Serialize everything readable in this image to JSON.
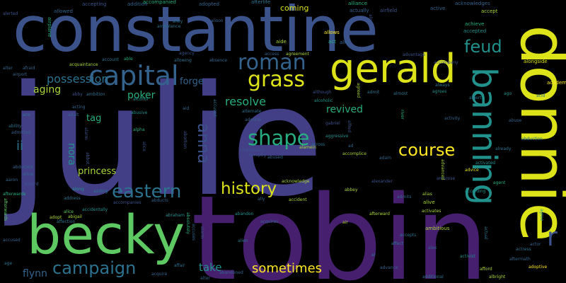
{
  "palette": {
    "background": "#000000",
    "dark_purple": "#46206e",
    "indigo": "#433f86",
    "slate_blue": "#3b528b",
    "blue": "#33638d",
    "teal_blue": "#2c728e",
    "teal": "#21918c",
    "green_teal": "#27ad81",
    "green": "#5ec962",
    "lime": "#a8d63a",
    "yellow": "#dce319",
    "bright_yellow": "#fde725"
  },
  "words": [
    {
      "text": "julie",
      "color": "#433f86"
    },
    {
      "text": "tobin",
      "color": "#46206e"
    },
    {
      "text": "constantine",
      "color": "#3b528b"
    },
    {
      "text": "donnie",
      "color": "#dce319"
    },
    {
      "text": "becky",
      "color": "#5ec962"
    },
    {
      "text": "gerald",
      "color": "#dce319"
    },
    {
      "text": "banning",
      "color": "#21918c"
    },
    {
      "text": "capital",
      "color": "#33638d"
    },
    {
      "text": "roman",
      "color": "#33638d"
    },
    {
      "text": "grass",
      "color": "#dce319"
    },
    {
      "text": "feud",
      "color": "#21918c"
    },
    {
      "text": "shape",
      "color": "#27ad81"
    },
    {
      "text": "eastern",
      "color": "#2c728e"
    },
    {
      "text": "campaign",
      "color": "#2c728e"
    },
    {
      "text": "course",
      "color": "#fde725"
    },
    {
      "text": "history",
      "color": "#dce319"
    },
    {
      "text": "anna",
      "color": "#3b528b"
    },
    {
      "text": "sometimes",
      "color": "#fde725"
    },
    {
      "text": "possession",
      "color": "#2c728e"
    },
    {
      "text": "resolve",
      "color": "#27ad81"
    },
    {
      "text": "revived",
      "color": "#27ad81"
    },
    {
      "text": "poker",
      "color": "#27ad81"
    },
    {
      "text": "forge",
      "color": "#33638d"
    },
    {
      "text": "aging",
      "color": "#a8d63a"
    },
    {
      "text": "tag",
      "color": "#27ad81"
    },
    {
      "text": "ii",
      "color": "#2c728e"
    },
    {
      "text": "nora",
      "color": "#21918c"
    },
    {
      "text": "princess",
      "color": "#a8d63a"
    },
    {
      "text": "take",
      "color": "#21918c"
    },
    {
      "text": "flynn",
      "color": "#33638d"
    },
    {
      "text": "r",
      "color": "#3b528b"
    },
    {
      "text": "accepting",
      "color": "#3b528b"
    },
    {
      "text": "addition",
      "color": "#33638d"
    },
    {
      "text": "accompanied",
      "color": "#27ad81"
    },
    {
      "text": "afterlife",
      "color": "#2c728e"
    },
    {
      "text": "adopted",
      "color": "#33638d"
    },
    {
      "text": "alliance",
      "color": "#27ad81"
    },
    {
      "text": "coming",
      "color": "#dce319"
    },
    {
      "text": "actually",
      "color": "#33638d"
    },
    {
      "text": "airfield",
      "color": "#3b528b"
    },
    {
      "text": "active",
      "color": "#33638d"
    },
    {
      "text": "acknowledges",
      "color": "#33638d"
    },
    {
      "text": "accept",
      "color": "#a8d63a"
    },
    {
      "text": "allows",
      "color": "#fde725"
    },
    {
      "text": "accepted",
      "color": "#21918c"
    },
    {
      "text": "achieve",
      "color": "#27ad81"
    },
    {
      "text": "access",
      "color": "#33638d"
    },
    {
      "text": "agreement",
      "color": "#a8d63a"
    },
    {
      "text": "advantage",
      "color": "#3b528b"
    },
    {
      "text": "accompany",
      "color": "#3b528b"
    },
    {
      "text": "alongside",
      "color": "#dce319"
    },
    {
      "text": "aide",
      "color": "#a8d63a"
    },
    {
      "text": "act",
      "color": "#27ad81"
    },
    {
      "text": "allie",
      "color": "#33638d"
    },
    {
      "text": "agency",
      "color": "#3b528b"
    },
    {
      "text": "allowing",
      "color": "#2c728e"
    },
    {
      "text": "absence",
      "color": "#33638d"
    },
    {
      "text": "acquaintance",
      "color": "#a8d63a"
    },
    {
      "text": "account",
      "color": "#2c728e"
    },
    {
      "text": "able",
      "color": "#27ad81"
    },
    {
      "text": "alerted",
      "color": "#3b528b"
    },
    {
      "text": "allowed",
      "color": "#33638d"
    },
    {
      "text": "ambulance",
      "color": "#2c728e"
    },
    {
      "text": "alison",
      "color": "#33638d"
    },
    {
      "text": "alley",
      "color": "#2c728e"
    },
    {
      "text": "alter",
      "color": "#33638d"
    },
    {
      "text": "afraid",
      "color": "#33638d"
    },
    {
      "text": "airport",
      "color": "#33638d"
    },
    {
      "text": "abby",
      "color": "#3b528b"
    },
    {
      "text": "ambition",
      "color": "#2c728e"
    },
    {
      "text": "alcohol",
      "color": "#21918c"
    },
    {
      "text": "acting",
      "color": "#33638d"
    },
    {
      "text": "adult",
      "color": "#33638d"
    },
    {
      "text": "ace",
      "color": "#2c728e"
    },
    {
      "text": "ability",
      "color": "#2c728e"
    },
    {
      "text": "admitted",
      "color": "#33638d"
    },
    {
      "text": "abducted",
      "color": "#33638d"
    },
    {
      "text": "allow",
      "color": "#33638d"
    },
    {
      "text": "aaron",
      "color": "#33638d"
    },
    {
      "text": "absurd",
      "color": "#3b528b"
    },
    {
      "text": "afterwards",
      "color": "#27ad81"
    },
    {
      "text": "address",
      "color": "#2c728e"
    },
    {
      "text": "along",
      "color": "#21918c"
    },
    {
      "text": "adding",
      "color": "#2c728e"
    },
    {
      "text": "adopt",
      "color": "#a8d63a"
    },
    {
      "text": "affection",
      "color": "#2c728e"
    },
    {
      "text": "alice",
      "color": "#5ec962"
    },
    {
      "text": "abigail",
      "color": "#a8d63a"
    },
    {
      "text": "accidentally",
      "color": "#21918c"
    },
    {
      "text": "accompanies",
      "color": "#3b528b"
    },
    {
      "text": "abducts",
      "color": "#33638d"
    },
    {
      "text": "abraham",
      "color": "#21918c"
    },
    {
      "text": "accused",
      "color": "#33638d"
    },
    {
      "text": "age",
      "color": "#2c728e"
    },
    {
      "text": "affair",
      "color": "#2c728e"
    },
    {
      "text": "acquire",
      "color": "#33638d"
    },
    {
      "text": "alter",
      "color": "#33638d"
    },
    {
      "text": "abandoned",
      "color": "#33638d"
    },
    {
      "text": "abusive",
      "color": "#21918c"
    },
    {
      "text": "alpha",
      "color": "#27ad81"
    },
    {
      "text": "aid",
      "color": "#33638d"
    },
    {
      "text": "abandon",
      "color": "#21918c"
    },
    {
      "text": "alive",
      "color": "#a8d63a"
    },
    {
      "text": "admiral",
      "color": "#33638d"
    },
    {
      "text": "abused",
      "color": "#33638d"
    },
    {
      "text": "alamein",
      "color": "#a8d63a"
    },
    {
      "text": "ambassador",
      "color": "#3b528b"
    },
    {
      "text": "abruptly",
      "color": "#3b528b"
    },
    {
      "text": "alternate",
      "color": "#2c728e"
    },
    {
      "text": "acknowledge",
      "color": "#a8d63a"
    },
    {
      "text": "ally",
      "color": "#33638d"
    },
    {
      "text": "accident",
      "color": "#a8d63a"
    },
    {
      "text": "acquires",
      "color": "#33638d"
    },
    {
      "text": "alien",
      "color": "#2c728e"
    },
    {
      "text": "although",
      "color": "#3b528b"
    },
    {
      "text": "alcoholic",
      "color": "#21918c"
    },
    {
      "text": "gabriel",
      "color": "#3b528b"
    },
    {
      "text": "aggressive",
      "color": "#21918c"
    },
    {
      "text": "across",
      "color": "#2c728e"
    },
    {
      "text": "accomplice",
      "color": "#a8d63a"
    },
    {
      "text": "ad",
      "color": "#33638d"
    },
    {
      "text": "adam",
      "color": "#33638d"
    },
    {
      "text": "abbey",
      "color": "#a8d63a"
    },
    {
      "text": "alexander",
      "color": "#3b528b"
    },
    {
      "text": "admits",
      "color": "#33638d"
    },
    {
      "text": "alias",
      "color": "#a8d63a"
    },
    {
      "text": "activates",
      "color": "#a8d63a"
    },
    {
      "text": "air",
      "color": "#a8d63a"
    },
    {
      "text": "afterward",
      "color": "#a8d63a"
    },
    {
      "text": "accepts",
      "color": "#2c728e"
    },
    {
      "text": "affect",
      "color": "#2c728e"
    },
    {
      "text": "ambitious",
      "color": "#a8d63a"
    },
    {
      "text": "advance",
      "color": "#33638d"
    },
    {
      "text": "al",
      "color": "#2c728e"
    },
    {
      "text": "alex",
      "color": "#33638d"
    },
    {
      "text": "additional",
      "color": "#2c728e"
    },
    {
      "text": "activist",
      "color": "#21918c"
    },
    {
      "text": "afford",
      "color": "#a8d63a"
    },
    {
      "text": "albright",
      "color": "#a8d63a"
    },
    {
      "text": "actor",
      "color": "#33638d"
    },
    {
      "text": "actress",
      "color": "#2c728e"
    },
    {
      "text": "aftermath",
      "color": "#33638d"
    },
    {
      "text": "adoptive",
      "color": "#fde725"
    },
    {
      "text": "according",
      "color": "#21918c"
    },
    {
      "text": "advice",
      "color": "#dce319"
    },
    {
      "text": "ambrose",
      "color": "#3b528b"
    },
    {
      "text": "agent",
      "color": "#27ad81"
    },
    {
      "text": "activated",
      "color": "#21918c"
    },
    {
      "text": "already",
      "color": "#2c728e"
    },
    {
      "text": "abduction",
      "color": "#2c728e"
    },
    {
      "text": "abuse",
      "color": "#33638d"
    },
    {
      "text": "activity",
      "color": "#33638d"
    },
    {
      "text": "albert",
      "color": "#2c728e"
    },
    {
      "text": "ago",
      "color": "#21918c"
    },
    {
      "text": "acid",
      "color": "#2c728e"
    },
    {
      "text": "academy",
      "color": "#fde725"
    },
    {
      "text": "agrees",
      "color": "#21918c"
    },
    {
      "text": "always",
      "color": "#2c728e"
    },
    {
      "text": "almost",
      "color": "#2c728e"
    },
    {
      "text": "admit",
      "color": "#2c728e"
    },
    {
      "text": "agreed",
      "color": "#a8d63a"
    },
    {
      "text": "alfred",
      "color": "#3b528b"
    },
    {
      "text": "airplane",
      "color": "#27ad81"
    },
    {
      "text": "afterwards",
      "color": "#5ec962"
    },
    {
      "text": "absolutely",
      "color": "#27ad81"
    },
    {
      "text": "agree",
      "color": "#21918c"
    },
    {
      "text": "actual",
      "color": "#2c728e"
    },
    {
      "text": "alone",
      "color": "#3b528b"
    },
    {
      "text": "river",
      "color": "#27ad81"
    },
    {
      "text": "advanced",
      "color": "#a8d63a"
    },
    {
      "text": "alarm",
      "color": "#3b528b"
    },
    {
      "text": "abortion",
      "color": "#3b528b"
    },
    {
      "text": "accuses",
      "color": "#33638d"
    },
    {
      "text": "abbot",
      "color": "#3b528b"
    },
    {
      "text": "accused",
      "color": "#2c728e"
    },
    {
      "text": "alarm",
      "color": "#3b528b"
    },
    {
      "text": "alice",
      "color": "#3b528b"
    }
  ]
}
